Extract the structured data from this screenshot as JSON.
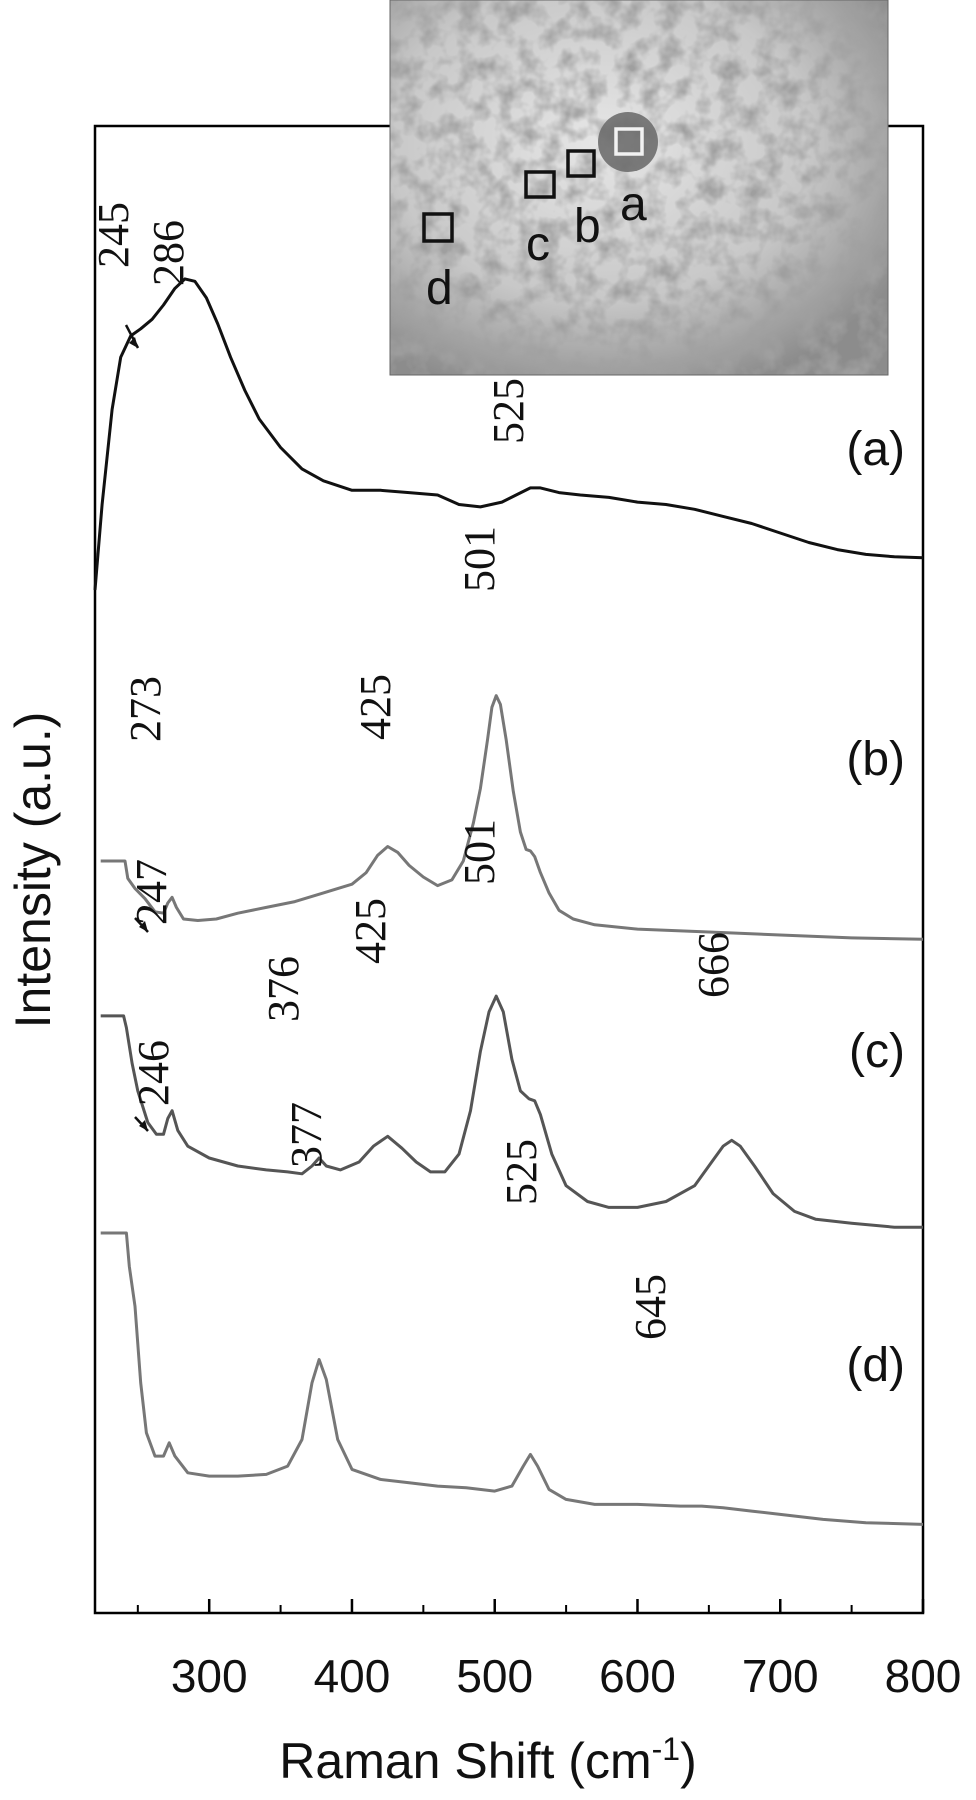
{
  "chart_data": {
    "type": "line",
    "xlabel": "Raman Shift (cm",
    "xlabel_sup": "-1",
    "xlabel_close": ")",
    "ylabel": "Intensity (a.u.)",
    "xlim": [
      220,
      800
    ],
    "xticks": [
      300,
      400,
      500,
      600,
      700,
      800
    ],
    "xtick_labels": [
      "300",
      "400",
      "500",
      "600",
      "700",
      "800"
    ],
    "minor_xticks": [
      250,
      350,
      450,
      550,
      650,
      750
    ],
    "yticks": false,
    "grid": false,
    "series": [
      {
        "name": "(a)",
        "color": "#111111",
        "points": [
          [
            220,
            0.0
          ],
          [
            225,
            0.18
          ],
          [
            232,
            0.38
          ],
          [
            238,
            0.49
          ],
          [
            245,
            0.535
          ],
          [
            252,
            0.55
          ],
          [
            260,
            0.57
          ],
          [
            268,
            0.6
          ],
          [
            276,
            0.635
          ],
          [
            283,
            0.655
          ],
          [
            290,
            0.65
          ],
          [
            298,
            0.615
          ],
          [
            306,
            0.56
          ],
          [
            315,
            0.49
          ],
          [
            325,
            0.42
          ],
          [
            335,
            0.36
          ],
          [
            350,
            0.3
          ],
          [
            365,
            0.255
          ],
          [
            380,
            0.23
          ],
          [
            400,
            0.21
          ],
          [
            420,
            0.21
          ],
          [
            440,
            0.205
          ],
          [
            460,
            0.2
          ],
          [
            475,
            0.18
          ],
          [
            490,
            0.175
          ],
          [
            505,
            0.185
          ],
          [
            515,
            0.2
          ],
          [
            525,
            0.215
          ],
          [
            532,
            0.215
          ],
          [
            545,
            0.205
          ],
          [
            560,
            0.2
          ],
          [
            580,
            0.195
          ],
          [
            600,
            0.185
          ],
          [
            620,
            0.18
          ],
          [
            640,
            0.17
          ],
          [
            660,
            0.155
          ],
          [
            680,
            0.14
          ],
          [
            700,
            0.12
          ],
          [
            720,
            0.1
          ],
          [
            740,
            0.085
          ],
          [
            760,
            0.075
          ],
          [
            780,
            0.07
          ],
          [
            800,
            0.068
          ]
        ]
      },
      {
        "name": "(b)",
        "color": "#777777",
        "points": [
          [
            224,
            0.3
          ],
          [
            241,
            0.3
          ],
          [
            243,
            0.24
          ],
          [
            248,
            0.205
          ],
          [
            255,
            0.17
          ],
          [
            262,
            0.125
          ],
          [
            268,
            0.12
          ],
          [
            271,
            0.155
          ],
          [
            274,
            0.175
          ],
          [
            277,
            0.14
          ],
          [
            282,
            0.1
          ],
          [
            292,
            0.095
          ],
          [
            305,
            0.1
          ],
          [
            320,
            0.12
          ],
          [
            340,
            0.14
          ],
          [
            360,
            0.16
          ],
          [
            380,
            0.19
          ],
          [
            400,
            0.22
          ],
          [
            410,
            0.26
          ],
          [
            418,
            0.32
          ],
          [
            425,
            0.35
          ],
          [
            432,
            0.33
          ],
          [
            440,
            0.285
          ],
          [
            450,
            0.245
          ],
          [
            460,
            0.215
          ],
          [
            470,
            0.235
          ],
          [
            478,
            0.3
          ],
          [
            485,
            0.43
          ],
          [
            490,
            0.55
          ],
          [
            495,
            0.72
          ],
          [
            498,
            0.83
          ],
          [
            501,
            0.87
          ],
          [
            504,
            0.84
          ],
          [
            508,
            0.72
          ],
          [
            513,
            0.54
          ],
          [
            518,
            0.4
          ],
          [
            522,
            0.34
          ],
          [
            525,
            0.335
          ],
          [
            528,
            0.315
          ],
          [
            532,
            0.26
          ],
          [
            538,
            0.19
          ],
          [
            545,
            0.13
          ],
          [
            555,
            0.1
          ],
          [
            570,
            0.08
          ],
          [
            600,
            0.065
          ],
          [
            650,
            0.055
          ],
          [
            700,
            0.045
          ],
          [
            750,
            0.035
          ],
          [
            800,
            0.03
          ]
        ]
      },
      {
        "name": "(c)",
        "color": "#555555",
        "points": [
          [
            224,
            0.57
          ],
          [
            240,
            0.57
          ],
          [
            242,
            0.54
          ],
          [
            246,
            0.45
          ],
          [
            250,
            0.38
          ],
          [
            257,
            0.3
          ],
          [
            263,
            0.27
          ],
          [
            268,
            0.27
          ],
          [
            271,
            0.31
          ],
          [
            274,
            0.33
          ],
          [
            278,
            0.28
          ],
          [
            285,
            0.24
          ],
          [
            300,
            0.21
          ],
          [
            320,
            0.19
          ],
          [
            340,
            0.18
          ],
          [
            355,
            0.175
          ],
          [
            365,
            0.17
          ],
          [
            372,
            0.19
          ],
          [
            377,
            0.21
          ],
          [
            382,
            0.19
          ],
          [
            392,
            0.18
          ],
          [
            405,
            0.2
          ],
          [
            415,
            0.24
          ],
          [
            425,
            0.265
          ],
          [
            435,
            0.235
          ],
          [
            445,
            0.2
          ],
          [
            455,
            0.175
          ],
          [
            465,
            0.175
          ],
          [
            475,
            0.22
          ],
          [
            483,
            0.33
          ],
          [
            490,
            0.48
          ],
          [
            496,
            0.58
          ],
          [
            501,
            0.62
          ],
          [
            506,
            0.58
          ],
          [
            512,
            0.46
          ],
          [
            518,
            0.38
          ],
          [
            524,
            0.36
          ],
          [
            528,
            0.355
          ],
          [
            532,
            0.32
          ],
          [
            540,
            0.22
          ],
          [
            550,
            0.14
          ],
          [
            565,
            0.1
          ],
          [
            580,
            0.085
          ],
          [
            600,
            0.085
          ],
          [
            620,
            0.1
          ],
          [
            640,
            0.14
          ],
          [
            652,
            0.2
          ],
          [
            660,
            0.24
          ],
          [
            666,
            0.255
          ],
          [
            672,
            0.24
          ],
          [
            682,
            0.19
          ],
          [
            695,
            0.12
          ],
          [
            710,
            0.075
          ],
          [
            725,
            0.055
          ],
          [
            750,
            0.045
          ],
          [
            780,
            0.035
          ],
          [
            800,
            0.035
          ]
        ]
      },
      {
        "name": "(d)",
        "color": "#777777",
        "points": [
          [
            224,
            1.0
          ],
          [
            242,
            1.0
          ],
          [
            244,
            0.9
          ],
          [
            248,
            0.78
          ],
          [
            252,
            0.55
          ],
          [
            256,
            0.4
          ],
          [
            262,
            0.33
          ],
          [
            268,
            0.33
          ],
          [
            272,
            0.37
          ],
          [
            276,
            0.33
          ],
          [
            285,
            0.28
          ],
          [
            300,
            0.27
          ],
          [
            320,
            0.27
          ],
          [
            340,
            0.275
          ],
          [
            355,
            0.3
          ],
          [
            365,
            0.38
          ],
          [
            372,
            0.55
          ],
          [
            377,
            0.62
          ],
          [
            382,
            0.56
          ],
          [
            390,
            0.38
          ],
          [
            400,
            0.29
          ],
          [
            420,
            0.26
          ],
          [
            440,
            0.25
          ],
          [
            460,
            0.24
          ],
          [
            480,
            0.235
          ],
          [
            500,
            0.225
          ],
          [
            512,
            0.24
          ],
          [
            520,
            0.3
          ],
          [
            525,
            0.335
          ],
          [
            530,
            0.3
          ],
          [
            538,
            0.23
          ],
          [
            550,
            0.2
          ],
          [
            570,
            0.185
          ],
          [
            600,
            0.185
          ],
          [
            630,
            0.18
          ],
          [
            645,
            0.18
          ],
          [
            660,
            0.175
          ],
          [
            680,
            0.165
          ],
          [
            700,
            0.155
          ],
          [
            730,
            0.14
          ],
          [
            760,
            0.13
          ],
          [
            800,
            0.125
          ]
        ]
      }
    ],
    "annotations": {
      "a": [
        {
          "x": 245,
          "label": "245"
        },
        {
          "x": 286,
          "label": "286"
        },
        {
          "x": 525,
          "label": "525"
        }
      ],
      "b": [
        {
          "x": 273,
          "label": "273"
        },
        {
          "x": 425,
          "label": "425"
        },
        {
          "x": 501,
          "label": "501"
        }
      ],
      "c": [
        {
          "x": 247,
          "label": "247"
        },
        {
          "x": 376,
          "label": "376"
        },
        {
          "x": 425,
          "label": "425"
        },
        {
          "x": 501,
          "label": "501"
        },
        {
          "x": 666,
          "label": "666"
        }
      ],
      "d": [
        {
          "x": 246,
          "label": "246"
        },
        {
          "x": 377,
          "label": "377"
        },
        {
          "x": 525,
          "label": "525"
        },
        {
          "x": 645,
          "label": "645"
        }
      ]
    },
    "inset": {
      "type": "micrograph",
      "markers": [
        "a",
        "b",
        "c",
        "d"
      ]
    }
  }
}
